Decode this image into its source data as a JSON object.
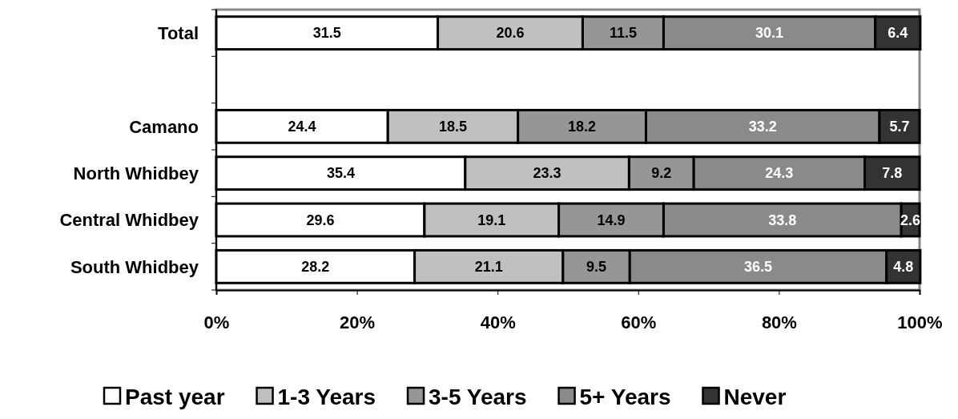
{
  "chart_data": {
    "type": "bar",
    "orientation": "horizontal",
    "stacked": true,
    "data_labels": true,
    "legend": "bottom",
    "grid": false,
    "categories": [
      "Total",
      null,
      "Camano",
      "North Whidbey",
      "Central Whidbey",
      "South Whidbey"
    ],
    "xlim": [
      0,
      100
    ],
    "xticks": [
      {
        "value": 0,
        "label": "0%"
      },
      {
        "value": 20,
        "label": "20%"
      },
      {
        "value": 40,
        "label": "40%"
      },
      {
        "value": 60,
        "label": "60%"
      },
      {
        "value": 80,
        "label": "80%"
      },
      {
        "value": 100,
        "label": "100%"
      }
    ],
    "series": [
      {
        "name": "Past year",
        "color": "#ffffff",
        "values": [
          31.5,
          null,
          24.4,
          35.4,
          29.6,
          28.2
        ]
      },
      {
        "name": "1-3 Years",
        "color": "#c0c0c0",
        "values": [
          20.6,
          null,
          18.5,
          23.3,
          19.1,
          21.1
        ]
      },
      {
        "name": "3-5 Years",
        "color": "#969696",
        "values": [
          11.5,
          null,
          18.2,
          9.2,
          14.9,
          9.5
        ]
      },
      {
        "name": "5+ Years",
        "color": "#8a8a8a",
        "values": [
          30.1,
          null,
          33.2,
          24.3,
          33.8,
          36.5
        ]
      },
      {
        "name": "Never",
        "color": "#333333",
        "values": [
          6.4,
          null,
          5.7,
          7.8,
          2.6,
          4.8
        ]
      }
    ]
  }
}
